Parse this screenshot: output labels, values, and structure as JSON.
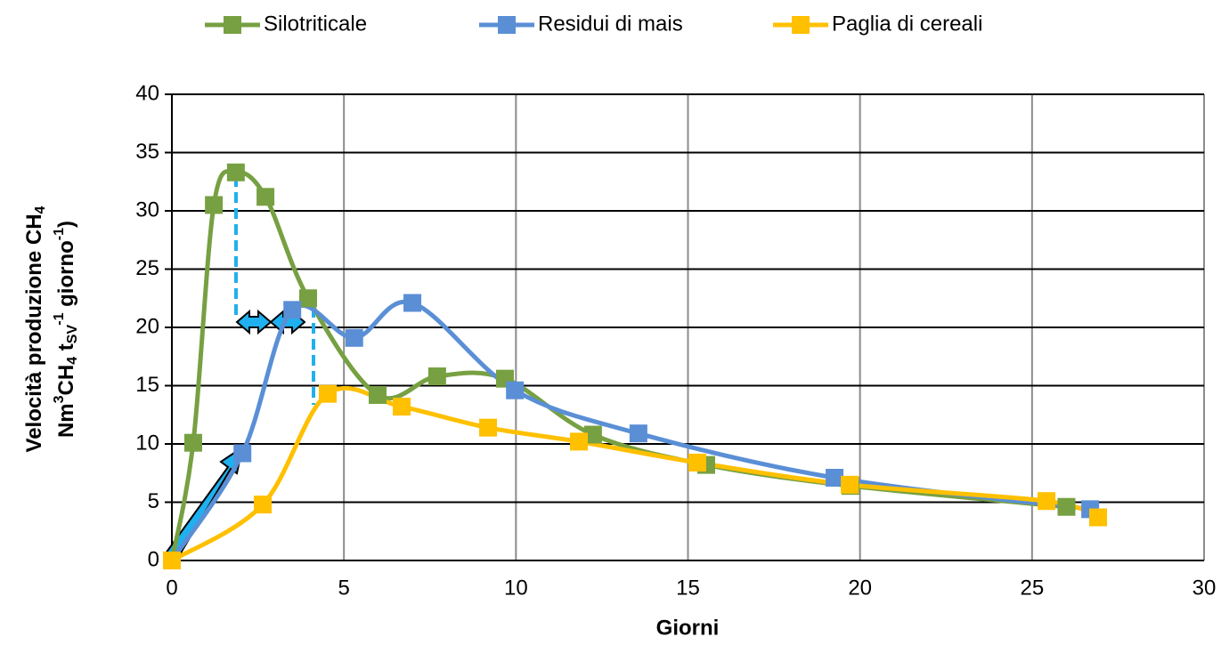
{
  "chart_data": {
    "type": "line",
    "x_label": "Giorni",
    "y_label": {
      "line1": [
        "Velocità produzione CH",
        "4"
      ],
      "line2": [
        "Nm",
        "3",
        "CH",
        "4",
        " t",
        "SV",
        "-1",
        " giorno",
        "-1",
        ")"
      ]
    },
    "xlim": [
      0,
      30
    ],
    "ylim": [
      0,
      40
    ],
    "xticks": [
      0,
      5,
      10,
      15,
      20,
      25,
      30
    ],
    "yticks": [
      0,
      5,
      10,
      15,
      20,
      25,
      30,
      35,
      40
    ],
    "grid": true,
    "legend": "top",
    "series": [
      {
        "name": "Silotriticale",
        "color": "#77a042",
        "x": [
          0,
          0.62,
          1.22,
          1.86,
          2.72,
          3.96,
          5.98,
          7.71,
          9.68,
          12.24,
          15.53,
          19.72,
          26.0
        ],
        "values": [
          0,
          10.1,
          30.5,
          33.3,
          31.2,
          22.5,
          14.2,
          15.8,
          15.6,
          10.8,
          8.2,
          6.4,
          4.6
        ]
      },
      {
        "name": "Residui di mais",
        "color": "#5a8fd6",
        "x": [
          0,
          2.05,
          3.5,
          5.3,
          6.99,
          9.97,
          13.56,
          19.26,
          26.69
        ],
        "values": [
          0,
          9.2,
          21.5,
          19.1,
          22.1,
          14.6,
          10.9,
          7.1,
          4.4
        ]
      },
      {
        "name": "Paglia di cereali",
        "color": "#ffc000",
        "x": [
          0,
          2.64,
          4.53,
          6.68,
          9.19,
          11.83,
          15.27,
          19.7,
          25.42,
          26.92
        ],
        "values": [
          0,
          4.8,
          14.3,
          13.2,
          11.4,
          10.2,
          8.4,
          6.5,
          5.1,
          3.7
        ]
      }
    ]
  }
}
